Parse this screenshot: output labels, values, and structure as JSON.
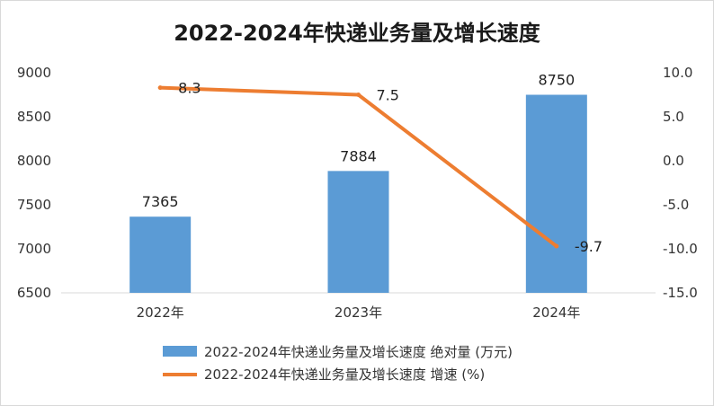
{
  "chart_data": {
    "type": "bar+line",
    "title": "2022-2024年快递业务量及增长速度",
    "categories": [
      "2022年",
      "2023年",
      "2024年"
    ],
    "series": [
      {
        "name": "2022-2024年快递业务量及增长速度 绝对量 (万元)",
        "type": "bar",
        "axis": "left",
        "values": [
          7365,
          7884,
          8750
        ],
        "labels": [
          "7365",
          "7884",
          "8750"
        ],
        "color": "#5b9bd5"
      },
      {
        "name": "2022-2024年快递业务量及增长速度 增速 (%)",
        "type": "line",
        "axis": "right",
        "values": [
          8.3,
          7.5,
          -9.7
        ],
        "labels": [
          "8.3",
          "7.5",
          "-9.7"
        ],
        "color": "#ed7d31"
      }
    ],
    "y_left": {
      "min": 6500,
      "max": 9000,
      "step": 500,
      "tick_labels": [
        "6500",
        "7000",
        "7500",
        "8000",
        "8500",
        "9000"
      ]
    },
    "y_right": {
      "min": -15,
      "max": 10,
      "step": 5,
      "tick_labels": [
        "-15.0",
        "-10.0",
        "-5.0",
        "0.0",
        "5.0",
        "10.0"
      ]
    },
    "grid": false,
    "legend_position": "bottom"
  }
}
